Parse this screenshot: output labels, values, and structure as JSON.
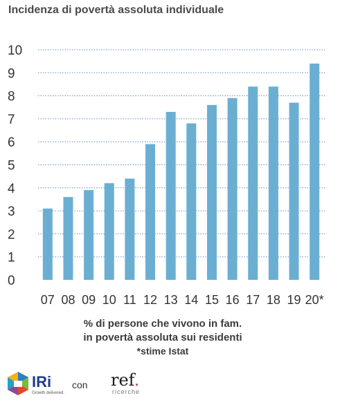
{
  "title": "Incidenza di povertà assoluta individuale",
  "caption": {
    "line1": "% di persone che vivono in fam.",
    "line2": "in povertà assoluta sui residenti",
    "line3": "*stime Istat"
  },
  "footer": {
    "iri_logo": "IRi",
    "iri_tagline": "Growth delivered.",
    "con": "con",
    "ref_logo": "ref",
    "ref_sub": "ricerche"
  },
  "colors": {
    "bar": "#6aafd2",
    "grid": "#5b8fc9",
    "text": "#333333"
  },
  "chart_data": {
    "type": "bar",
    "categories": [
      "07",
      "08",
      "09",
      "10",
      "11",
      "12",
      "13",
      "14",
      "15",
      "16",
      "17",
      "18",
      "19",
      "20*"
    ],
    "values": [
      3.1,
      3.6,
      3.9,
      4.2,
      4.4,
      5.9,
      7.3,
      6.8,
      7.6,
      7.9,
      8.4,
      8.4,
      7.7,
      9.4
    ],
    "ylim": [
      0,
      10
    ],
    "yticks": [
      0,
      1,
      2,
      3,
      4,
      5,
      6,
      7,
      8,
      9,
      10
    ],
    "grid": true,
    "xlabel": "",
    "ylabel": ""
  }
}
